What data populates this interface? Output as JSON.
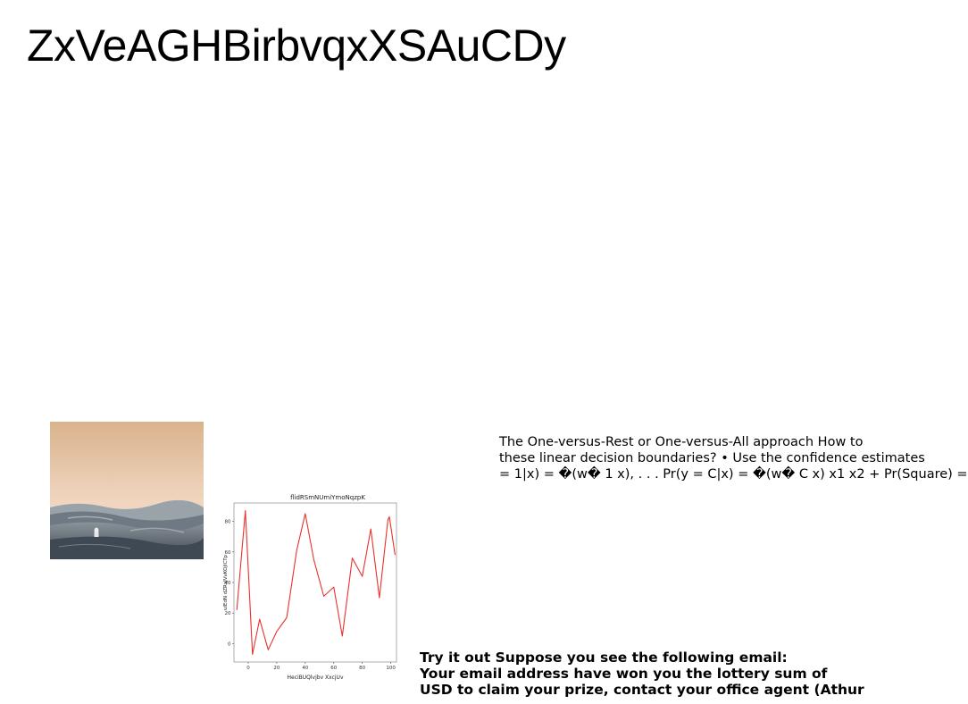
{
  "page": {
    "title": "ZxVeAGHBirbvqxXSAuCDy"
  },
  "text_block_ml": {
    "lines": [
      "The One-versus-Rest or One-versus-All approach How to",
      "these linear decision boundaries? • Use the confidence estimates",
      "= 1|x) = �(w� 1 x), . . . Pr(y = C|x) = �(w� C x) x1 x2 + Pr(Square) ="
    ]
  },
  "text_block_email": {
    "lines": [
      "Try it out Suppose you see the following email:",
      "Your email address have won you the lottery sum of",
      "USD to claim your prize, contact your office agent (Athur"
    ]
  },
  "colors": {
    "line_series": "#e8322c",
    "sky_top": "#dcb58e",
    "sky_bottom": "#f4e1d3",
    "dunes": "#56606a"
  },
  "chart_data": {
    "type": "line",
    "title": "flidRSmNUmiYmoNqzpK",
    "xlabel": "HeciBUQlvjbv XxcjUv",
    "ylabel": "uIEdN dZRxJVvKOjlCTp",
    "xlim": [
      -10,
      104
    ],
    "ylim": [
      -12,
      92
    ],
    "xticks": [
      0,
      20,
      40,
      60,
      80,
      100
    ],
    "yticks": [
      0,
      20,
      40,
      60,
      80
    ],
    "grid": false,
    "series": [
      {
        "x": [
          -8,
          -2,
          3,
          8,
          14,
          20,
          27,
          34,
          40,
          46,
          53,
          60,
          66,
          73,
          80,
          86,
          92,
          98
        ],
        "y": [
          22,
          87,
          -7,
          16,
          -4,
          8,
          17,
          61,
          85,
          55,
          31,
          37,
          5,
          56,
          44,
          75,
          30,
          81
        ]
      }
    ],
    "extra_points": {
      "x": [
        99,
        103
      ],
      "y": [
        83,
        58
      ]
    }
  }
}
